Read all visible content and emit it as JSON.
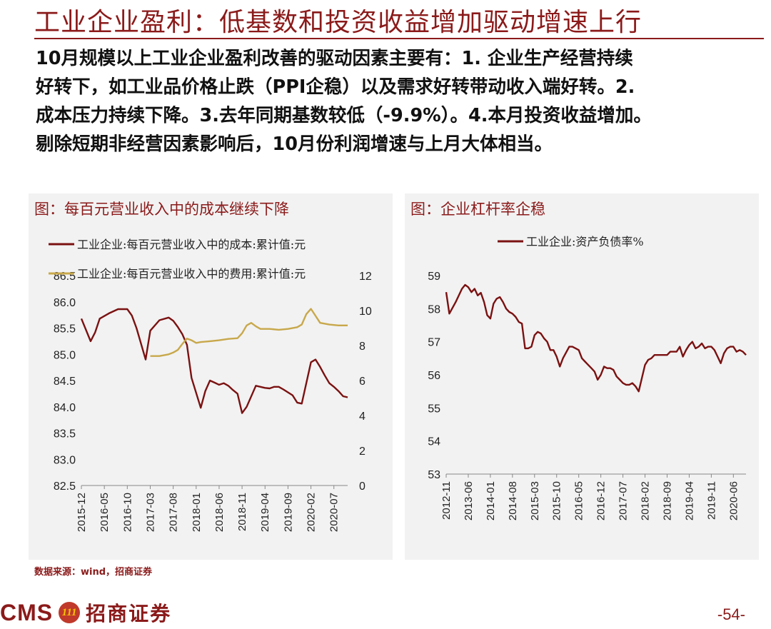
{
  "page": {
    "title": "工业企业盈利：低基数和投资收益增加驱动增速上行",
    "body_lines": [
      "10月规模以上工业企业盈利改善的驱动因素主要有：1. 企业生产经营持续",
      "好转下，如工业品价格止跌（PPI企稳）以及需求好转带动收入端好转。2.",
      "成本压力持续下降。3.去年同期基数较低（-9.9%）。4.本月投资收益增加。",
      "剔除短期非经营因素影响后，10月份利润增速与上月大体相当。"
    ],
    "source": "数据来源：wind，招商证券",
    "logo_text": "CMS",
    "logo_emblem_text": "111",
    "logo_cn": "招商证券",
    "page_number": "-54-"
  },
  "colors": {
    "brand": "#8B1A1A",
    "series_cost": "#7B1111",
    "series_expense": "#C8A84B",
    "panel_bg": "#F2F2F2"
  },
  "chart_data": [
    {
      "type": "line",
      "title": "图：每百元营业收入中的成本继续下降",
      "x_ticks": [
        "2015-12",
        "2016-05",
        "2016-10",
        "2017-03",
        "2017-08",
        "2018-01",
        "2018-06",
        "2018-11",
        "2019-04",
        "2019-09",
        "2020-02",
        "2020-07"
      ],
      "x_start": "2015-12",
      "x_end": "2020-10",
      "y_left": {
        "range": [
          82.5,
          86.5
        ],
        "ticks": [
          "86.5",
          "86.0",
          "85.5",
          "85.0",
          "84.5",
          "84.0",
          "83.5",
          "83.0",
          "82.5"
        ]
      },
      "y_right": {
        "range": [
          0,
          12
        ],
        "ticks": [
          "12",
          "10",
          "8",
          "6",
          "4",
          "2",
          "0"
        ]
      },
      "series": [
        {
          "name": "工业企业:每百元营业收入中的成本:累计值:元",
          "axis": "left",
          "color": "#7B1111",
          "points": [
            [
              "2015-12",
              85.68
            ],
            [
              "2016-02",
              85.25
            ],
            [
              "2016-03",
              85.42
            ],
            [
              "2016-04",
              85.68
            ],
            [
              "2016-06",
              85.78
            ],
            [
              "2016-08",
              85.86
            ],
            [
              "2016-10",
              85.86
            ],
            [
              "2016-11",
              85.74
            ],
            [
              "2016-12",
              85.5
            ],
            [
              "2017-02",
              84.9
            ],
            [
              "2017-03",
              85.45
            ],
            [
              "2017-05",
              85.65
            ],
            [
              "2017-07",
              85.7
            ],
            [
              "2017-08",
              85.64
            ],
            [
              "2017-09",
              85.52
            ],
            [
              "2017-10",
              85.38
            ],
            [
              "2017-11",
              85.18
            ],
            [
              "2017-12",
              84.55
            ],
            [
              "2018-02",
              83.98
            ],
            [
              "2018-03",
              84.3
            ],
            [
              "2018-04",
              84.5
            ],
            [
              "2018-05",
              84.46
            ],
            [
              "2018-06",
              84.42
            ],
            [
              "2018-07",
              84.45
            ],
            [
              "2018-08",
              84.4
            ],
            [
              "2018-09",
              84.32
            ],
            [
              "2018-10",
              84.25
            ],
            [
              "2018-11",
              83.88
            ],
            [
              "2018-12",
              84.0
            ],
            [
              "2019-02",
              84.4
            ],
            [
              "2019-04",
              84.36
            ],
            [
              "2019-05",
              84.35
            ],
            [
              "2019-06",
              84.38
            ],
            [
              "2019-07",
              84.38
            ],
            [
              "2019-08",
              84.33
            ],
            [
              "2019-10",
              84.22
            ],
            [
              "2019-11",
              84.08
            ],
            [
              "2019-12",
              84.06
            ],
            [
              "2020-02",
              84.85
            ],
            [
              "2020-03",
              84.9
            ],
            [
              "2020-04",
              84.76
            ],
            [
              "2020-05",
              84.6
            ],
            [
              "2020-06",
              84.45
            ],
            [
              "2020-07",
              84.38
            ],
            [
              "2020-08",
              84.3
            ],
            [
              "2020-09",
              84.2
            ],
            [
              "2020-10",
              84.18
            ]
          ]
        },
        {
          "name": "工业企业:每百元营业收入中的费用:累计值:元",
          "axis": "right",
          "color": "#C8A84B",
          "points": [
            [
              "2017-03",
              7.4
            ],
            [
              "2017-05",
              7.4
            ],
            [
              "2017-07",
              7.5
            ],
            [
              "2017-08",
              7.6
            ],
            [
              "2017-09",
              7.75
            ],
            [
              "2017-10",
              8.1
            ],
            [
              "2017-11",
              8.4
            ],
            [
              "2017-12",
              8.3
            ],
            [
              "2018-01",
              8.15
            ],
            [
              "2018-02",
              8.2
            ],
            [
              "2018-04",
              8.25
            ],
            [
              "2018-06",
              8.3
            ],
            [
              "2018-08",
              8.38
            ],
            [
              "2018-10",
              8.42
            ],
            [
              "2018-11",
              8.7
            ],
            [
              "2018-12",
              9.15
            ],
            [
              "2019-01",
              9.3
            ],
            [
              "2019-02",
              9.1
            ],
            [
              "2019-03",
              8.95
            ],
            [
              "2019-05",
              8.95
            ],
            [
              "2019-07",
              8.9
            ],
            [
              "2019-09",
              8.95
            ],
            [
              "2019-11",
              9.05
            ],
            [
              "2019-12",
              9.2
            ],
            [
              "2020-01",
              9.8
            ],
            [
              "2020-02",
              10.1
            ],
            [
              "2020-03",
              9.7
            ],
            [
              "2020-04",
              9.3
            ],
            [
              "2020-06",
              9.2
            ],
            [
              "2020-08",
              9.15
            ],
            [
              "2020-10",
              9.15
            ]
          ]
        }
      ]
    },
    {
      "type": "line",
      "title": "图：企业杠杆率企稳",
      "x_ticks": [
        "2012-11",
        "2013-06",
        "2014-01",
        "2014-08",
        "2015-03",
        "2015-10",
        "2016-05",
        "2016-12",
        "2017-07",
        "2018-02",
        "2018-09",
        "2019-04",
        "2019-11",
        "2020-06"
      ],
      "x_start": "2012-11",
      "x_end": "2020-10",
      "y": {
        "range": [
          53,
          59
        ],
        "ticks": [
          "59",
          "58",
          "57",
          "56",
          "55",
          "54",
          "53"
        ]
      },
      "series": [
        {
          "name": "工业企业:资产负债率%",
          "color": "#7B1111",
          "points": [
            [
              "2012-11",
              58.5
            ],
            [
              "2012-12",
              57.85
            ],
            [
              "2013-02",
              58.2
            ],
            [
              "2013-04",
              58.6
            ],
            [
              "2013-05",
              58.72
            ],
            [
              "2013-06",
              58.65
            ],
            [
              "2013-07",
              58.5
            ],
            [
              "2013-08",
              58.6
            ],
            [
              "2013-09",
              58.4
            ],
            [
              "2013-10",
              58.48
            ],
            [
              "2013-11",
              58.2
            ],
            [
              "2013-12",
              57.8
            ],
            [
              "2014-01",
              57.7
            ],
            [
              "2014-02",
              58.15
            ],
            [
              "2014-03",
              58.3
            ],
            [
              "2014-04",
              58.35
            ],
            [
              "2014-05",
              58.2
            ],
            [
              "2014-06",
              58.0
            ],
            [
              "2014-07",
              57.9
            ],
            [
              "2014-08",
              57.85
            ],
            [
              "2014-09",
              57.75
            ],
            [
              "2014-10",
              57.6
            ],
            [
              "2014-11",
              57.55
            ],
            [
              "2014-12",
              56.8
            ],
            [
              "2015-01",
              56.8
            ],
            [
              "2015-02",
              56.85
            ],
            [
              "2015-03",
              57.2
            ],
            [
              "2015-04",
              57.3
            ],
            [
              "2015-05",
              57.25
            ],
            [
              "2015-06",
              57.1
            ],
            [
              "2015-07",
              57.0
            ],
            [
              "2015-08",
              56.75
            ],
            [
              "2015-09",
              56.75
            ],
            [
              "2015-10",
              56.55
            ],
            [
              "2015-11",
              56.25
            ],
            [
              "2015-12",
              56.5
            ],
            [
              "2016-02",
              56.85
            ],
            [
              "2016-03",
              56.85
            ],
            [
              "2016-04",
              56.8
            ],
            [
              "2016-05",
              56.75
            ],
            [
              "2016-06",
              56.5
            ],
            [
              "2016-07",
              56.4
            ],
            [
              "2016-08",
              56.3
            ],
            [
              "2016-09",
              56.2
            ],
            [
              "2016-10",
              56.1
            ],
            [
              "2016-11",
              55.85
            ],
            [
              "2016-12",
              56.0
            ],
            [
              "2017-01",
              56.25
            ],
            [
              "2017-02",
              56.2
            ],
            [
              "2017-03",
              56.2
            ],
            [
              "2017-04",
              56.15
            ],
            [
              "2017-05",
              55.95
            ],
            [
              "2017-06",
              55.85
            ],
            [
              "2017-07",
              55.75
            ],
            [
              "2017-08",
              55.7
            ],
            [
              "2017-09",
              55.7
            ],
            [
              "2017-10",
              55.75
            ],
            [
              "2017-11",
              55.65
            ],
            [
              "2017-12",
              55.5
            ],
            [
              "2018-01",
              55.9
            ],
            [
              "2018-02",
              56.3
            ],
            [
              "2018-03",
              56.45
            ],
            [
              "2018-04",
              56.5
            ],
            [
              "2018-05",
              56.6
            ],
            [
              "2018-06",
              56.6
            ],
            [
              "2018-07",
              56.6
            ],
            [
              "2018-08",
              56.6
            ],
            [
              "2018-09",
              56.6
            ],
            [
              "2018-10",
              56.7
            ],
            [
              "2018-11",
              56.7
            ],
            [
              "2018-12",
              56.7
            ],
            [
              "2019-01",
              56.85
            ],
            [
              "2019-02",
              56.55
            ],
            [
              "2019-03",
              56.75
            ],
            [
              "2019-04",
              56.9
            ],
            [
              "2019-05",
              57.0
            ],
            [
              "2019-06",
              56.8
            ],
            [
              "2019-07",
              56.85
            ],
            [
              "2019-08",
              56.95
            ],
            [
              "2019-09",
              56.8
            ],
            [
              "2019-10",
              56.85
            ],
            [
              "2019-11",
              56.85
            ],
            [
              "2019-12",
              56.75
            ],
            [
              "2020-01",
              56.55
            ],
            [
              "2020-02",
              56.35
            ],
            [
              "2020-03",
              56.65
            ],
            [
              "2020-04",
              56.8
            ],
            [
              "2020-05",
              56.85
            ],
            [
              "2020-06",
              56.85
            ],
            [
              "2020-07",
              56.7
            ],
            [
              "2020-08",
              56.75
            ],
            [
              "2020-09",
              56.7
            ],
            [
              "2020-10",
              56.6
            ]
          ]
        }
      ]
    }
  ]
}
